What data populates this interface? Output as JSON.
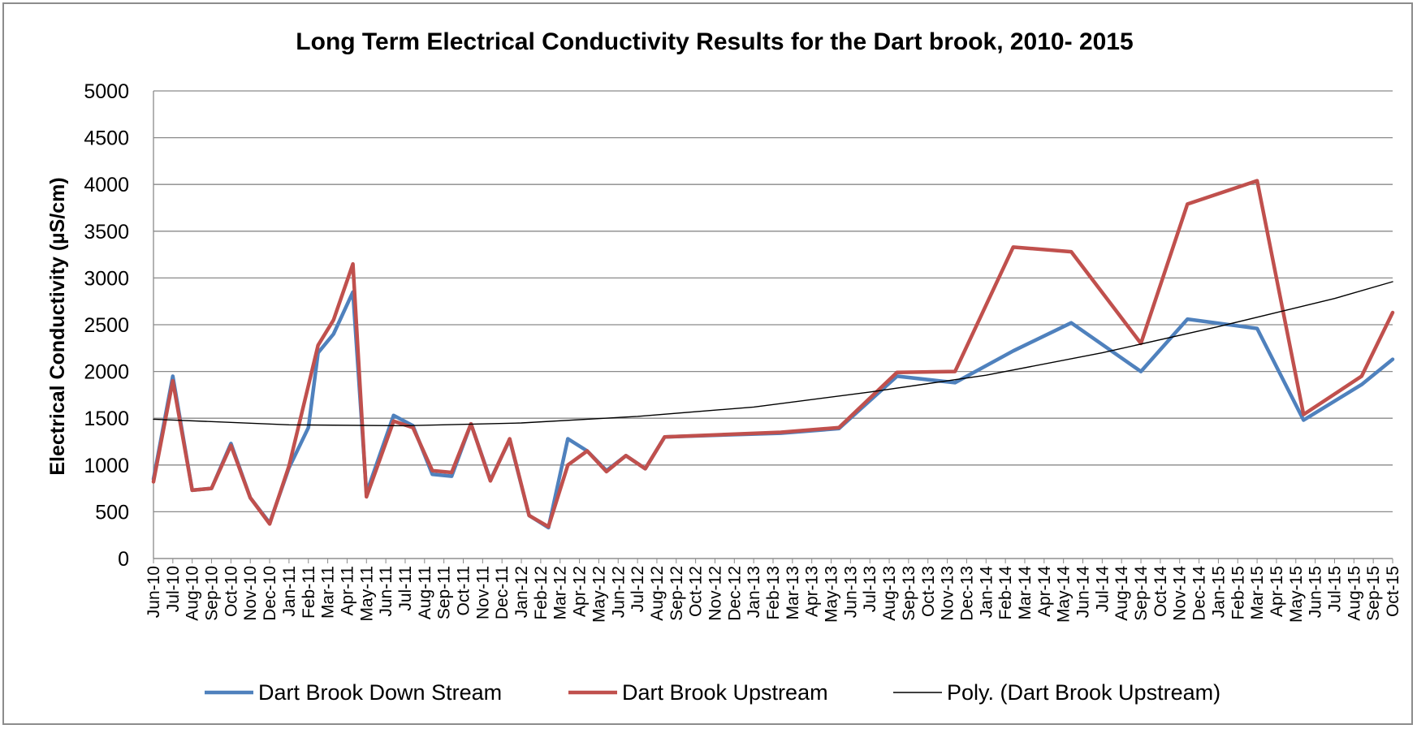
{
  "chart_data": {
    "type": "line",
    "title": "Long Term Electrical Conductivity Results for the Dart brook, 2010- 2015",
    "xlabel": "",
    "ylabel": "Electrical Conductivity (µS/cm)",
    "ylim": [
      0,
      5000
    ],
    "yticks": [
      0,
      500,
      1000,
      1500,
      2000,
      2500,
      3000,
      3500,
      4000,
      4500,
      5000
    ],
    "grid": true,
    "legend_position": "bottom",
    "categories": [
      "Jun-10",
      "Jul-10",
      "Aug-10",
      "Sep-10",
      "Oct-10",
      "Nov-10",
      "Dec-10",
      "Jan-11",
      "Feb-11",
      "Mar-11",
      "Apr-11",
      "May-11",
      "Jun-11",
      "Jul-11",
      "Aug-11",
      "Sep-11",
      "Oct-11",
      "Nov-11",
      "Dec-11",
      "Jan-12",
      "Feb-12",
      "Mar-12",
      "Apr-12",
      "May-12",
      "Jun-12",
      "Jul-12",
      "Aug-12",
      "Sep-12",
      "Oct-12",
      "Nov-12",
      "Dec-12",
      "Jan-13",
      "Feb-13",
      "Mar-13",
      "Apr-13",
      "May-13",
      "Jun-13",
      "Jul-13",
      "Aug-13",
      "Sep-13",
      "Oct-13",
      "Nov-13",
      "Dec-13",
      "Jan-14",
      "Feb-14",
      "Mar-14",
      "Apr-14",
      "May-14",
      "Jun-14",
      "Jul-14",
      "Aug-14",
      "Sep-14",
      "Oct-14",
      "Nov-14",
      "Dec-14",
      "Jan-15",
      "Feb-15",
      "Mar-15",
      "Apr-15",
      "May-15",
      "Jun-15",
      "Jul-15",
      "Aug-15",
      "Sep-15",
      "Oct-15"
    ],
    "series": [
      {
        "name": "Dart Brook Down Stream",
        "color": "#4f81bd",
        "style": "thick",
        "points": [
          {
            "x": "Jun-10",
            "y": 850
          },
          {
            "x": "Jul-10",
            "y": 1950
          },
          {
            "x": "Aug-10",
            "y": 730
          },
          {
            "x": "Sep-10",
            "y": 750
          },
          {
            "x": "Oct-10",
            "y": 1230
          },
          {
            "x": "Nov-10",
            "y": 650
          },
          {
            "x": "Dec-10",
            "y": 380
          },
          {
            "x": "Jan-11",
            "y": 970
          },
          {
            "x": "Feb-11",
            "y": 1400
          },
          {
            "x": "Feb-11",
            "y": 2200,
            "offset": 0.5
          },
          {
            "x": "Mar-11",
            "y": 2400,
            "offset": 0.3
          },
          {
            "x": "Apr-11",
            "y": 2850,
            "offset": 0.3
          },
          {
            "x": "May-11",
            "y": 700
          },
          {
            "x": "Jun-11",
            "y": 1530,
            "offset": 0.4
          },
          {
            "x": "Jul-11",
            "y": 1420,
            "offset": 0.4
          },
          {
            "x": "Aug-11",
            "y": 900,
            "offset": 0.4
          },
          {
            "x": "Sep-11",
            "y": 880,
            "offset": 0.4
          },
          {
            "x": "Oct-11",
            "y": 1440,
            "offset": 0.4
          },
          {
            "x": "Nov-11",
            "y": 840,
            "offset": 0.4
          },
          {
            "x": "Dec-11",
            "y": 1270,
            "offset": 0.4
          },
          {
            "x": "Jan-12",
            "y": 460,
            "offset": 0.4
          },
          {
            "x": "Feb-12",
            "y": 330,
            "offset": 0.4
          },
          {
            "x": "Mar-12",
            "y": 1280,
            "offset": 0.4
          },
          {
            "x": "Apr-12",
            "y": 1150,
            "offset": 0.4
          },
          {
            "x": "May-12",
            "y": 940,
            "offset": 0.4
          },
          {
            "x": "Jun-12",
            "y": 1100,
            "offset": 0.4
          },
          {
            "x": "Jul-12",
            "y": 960,
            "offset": 0.4
          },
          {
            "x": "Aug-12",
            "y": 1300,
            "offset": 0.4
          },
          {
            "x": "Feb-13",
            "y": 1340,
            "offset": 0.4
          },
          {
            "x": "May-13",
            "y": 1390,
            "offset": 0.4
          },
          {
            "x": "Aug-13",
            "y": 1950,
            "offset": 0.4
          },
          {
            "x": "Nov-13",
            "y": 1880,
            "offset": 0.4
          },
          {
            "x": "Feb-14",
            "y": 2220,
            "offset": 0.4
          },
          {
            "x": "May-14",
            "y": 2520,
            "offset": 0.4
          },
          {
            "x": "Sep-14",
            "y": 2000
          },
          {
            "x": "Nov-14",
            "y": 2560,
            "offset": 0.4
          },
          {
            "x": "Mar-15",
            "y": 2460
          },
          {
            "x": "May-15",
            "y": 1480,
            "offset": 0.4
          },
          {
            "x": "Aug-15",
            "y": 1860,
            "offset": 0.4
          },
          {
            "x": "Oct-15",
            "y": 2130
          }
        ]
      },
      {
        "name": "Dart Brook Upstream",
        "color": "#c0504d",
        "style": "thick",
        "points": [
          {
            "x": "Jun-10",
            "y": 820
          },
          {
            "x": "Jul-10",
            "y": 1900
          },
          {
            "x": "Aug-10",
            "y": 730
          },
          {
            "x": "Sep-10",
            "y": 750
          },
          {
            "x": "Oct-10",
            "y": 1210
          },
          {
            "x": "Nov-10",
            "y": 650
          },
          {
            "x": "Dec-10",
            "y": 370
          },
          {
            "x": "Jan-11",
            "y": 990
          },
          {
            "x": "Feb-11",
            "y": 1850
          },
          {
            "x": "Feb-11",
            "y": 2280,
            "offset": 0.5
          },
          {
            "x": "Mar-11",
            "y": 2550,
            "offset": 0.3
          },
          {
            "x": "Apr-11",
            "y": 3150,
            "offset": 0.3
          },
          {
            "x": "May-11",
            "y": 660
          },
          {
            "x": "Jun-11",
            "y": 1470,
            "offset": 0.4
          },
          {
            "x": "Jul-11",
            "y": 1400,
            "offset": 0.4
          },
          {
            "x": "Aug-11",
            "y": 940,
            "offset": 0.4
          },
          {
            "x": "Sep-11",
            "y": 920,
            "offset": 0.4
          },
          {
            "x": "Oct-11",
            "y": 1440,
            "offset": 0.4
          },
          {
            "x": "Nov-11",
            "y": 830,
            "offset": 0.4
          },
          {
            "x": "Dec-11",
            "y": 1280,
            "offset": 0.4
          },
          {
            "x": "Jan-12",
            "y": 460,
            "offset": 0.4
          },
          {
            "x": "Feb-12",
            "y": 340,
            "offset": 0.4
          },
          {
            "x": "Mar-12",
            "y": 1000,
            "offset": 0.4
          },
          {
            "x": "Apr-12",
            "y": 1150,
            "offset": 0.4
          },
          {
            "x": "May-12",
            "y": 930,
            "offset": 0.4
          },
          {
            "x": "Jun-12",
            "y": 1100,
            "offset": 0.4
          },
          {
            "x": "Jul-12",
            "y": 960,
            "offset": 0.4
          },
          {
            "x": "Aug-12",
            "y": 1300,
            "offset": 0.4
          },
          {
            "x": "Feb-13",
            "y": 1350,
            "offset": 0.4
          },
          {
            "x": "May-13",
            "y": 1400,
            "offset": 0.4
          },
          {
            "x": "Aug-13",
            "y": 1990,
            "offset": 0.4
          },
          {
            "x": "Nov-13",
            "y": 2000,
            "offset": 0.4
          },
          {
            "x": "Feb-14",
            "y": 3330,
            "offset": 0.4
          },
          {
            "x": "May-14",
            "y": 3280,
            "offset": 0.4
          },
          {
            "x": "Sep-14",
            "y": 2300
          },
          {
            "x": "Nov-14",
            "y": 3790,
            "offset": 0.4
          },
          {
            "x": "Mar-15",
            "y": 4040
          },
          {
            "x": "May-15",
            "y": 1540,
            "offset": 0.4
          },
          {
            "x": "Aug-15",
            "y": 1950,
            "offset": 0.4
          },
          {
            "x": "Oct-15",
            "y": 2630
          }
        ]
      },
      {
        "name": "Poly. (Dart Brook Upstream)",
        "color": "#000000",
        "style": "thin",
        "points": [
          {
            "x": "Jun-10",
            "y": 1490
          },
          {
            "x": "Jan-11",
            "y": 1430
          },
          {
            "x": "Jul-11",
            "y": 1420
          },
          {
            "x": "Jan-12",
            "y": 1450
          },
          {
            "x": "Jul-12",
            "y": 1520
          },
          {
            "x": "Jan-13",
            "y": 1620
          },
          {
            "x": "Jul-13",
            "y": 1780
          },
          {
            "x": "Jan-14",
            "y": 1960
          },
          {
            "x": "Jul-14",
            "y": 2200
          },
          {
            "x": "Jan-15",
            "y": 2480
          },
          {
            "x": "Jul-15",
            "y": 2780
          },
          {
            "x": "Oct-15",
            "y": 2960
          }
        ]
      }
    ]
  }
}
